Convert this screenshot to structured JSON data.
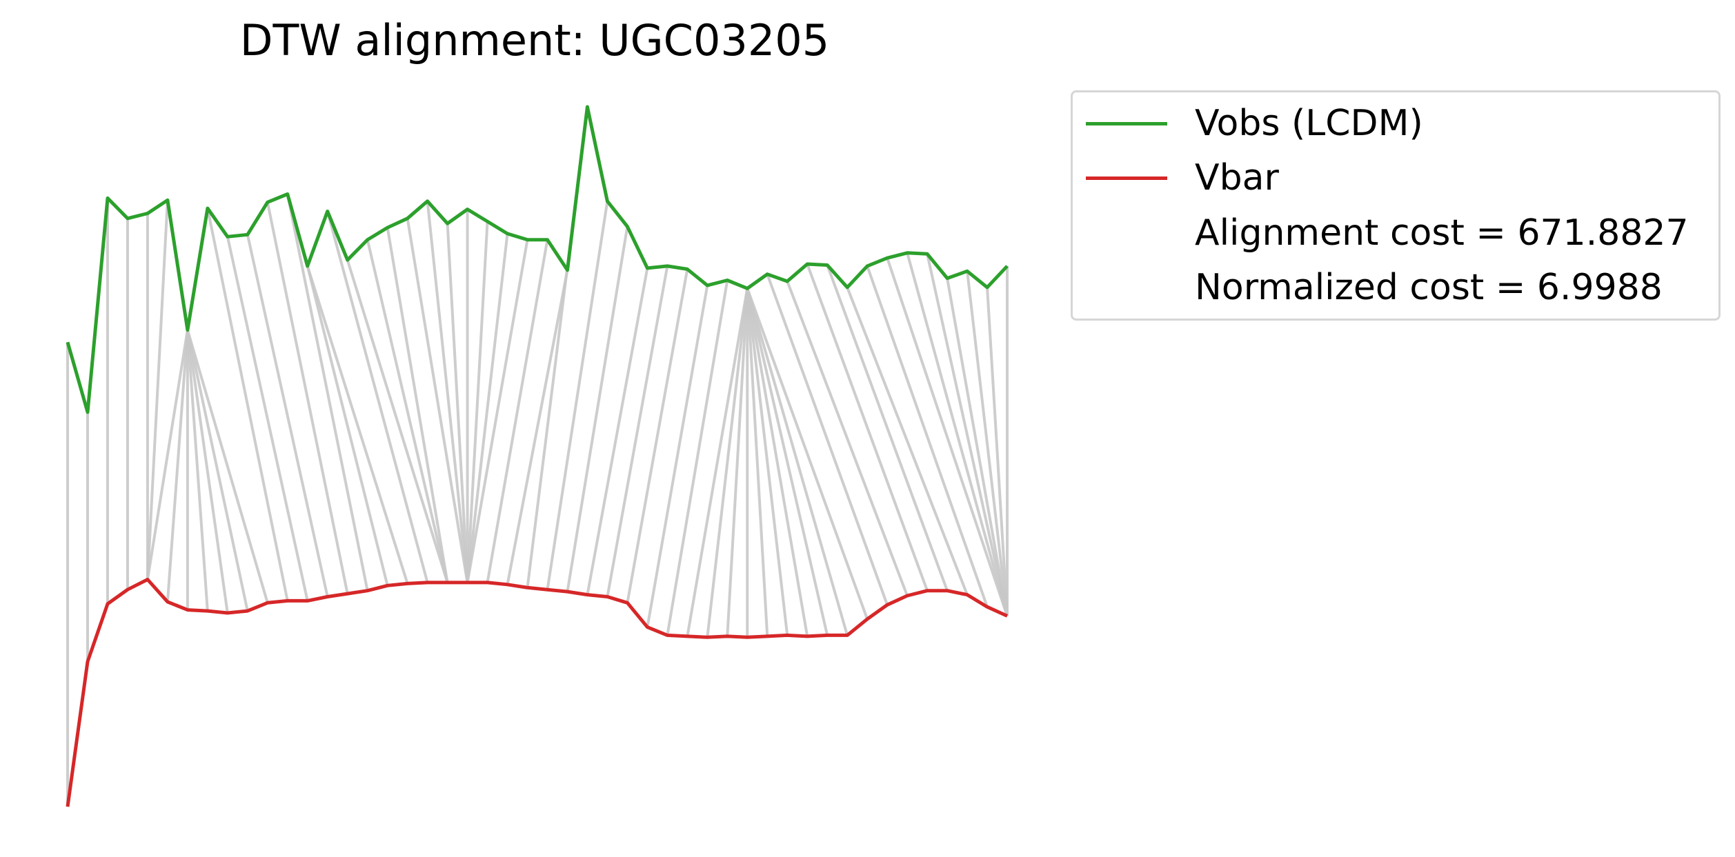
{
  "chart_data": {
    "type": "line",
    "title": "DTW alignment: UGC03205",
    "axes_visible": false,
    "grid": false,
    "legend_placement": "outside right, top",
    "series": [
      {
        "name": "Vobs (LCDM)",
        "color": "#2ca02c",
        "values": [
          29.5,
          22.6,
          43.7,
          41.7,
          42.2,
          43.5,
          30.7,
          42.7,
          39.9,
          40.1,
          43.3,
          44.1,
          37.0,
          42.4,
          37.6,
          39.6,
          40.8,
          41.7,
          43.4,
          41.2,
          42.6,
          41.4,
          40.2,
          39.6,
          39.6,
          36.6,
          52.7,
          43.4,
          40.9,
          36.8,
          37.0,
          36.7,
          35.1,
          35.6,
          34.8,
          36.2,
          35.5,
          37.2,
          37.1,
          34.9,
          37.0,
          37.8,
          38.3,
          38.2,
          35.8,
          36.5,
          34.9,
          37.0
        ]
      },
      {
        "name": "Vbar",
        "color": "#d62728",
        "values": [
          -16.3,
          -2.0,
          3.7,
          5.1,
          6.1,
          3.9,
          3.1,
          3.0,
          2.8,
          3.0,
          3.8,
          4.0,
          4.0,
          4.4,
          4.7,
          5.0,
          5.5,
          5.7,
          5.8,
          5.8,
          5.8,
          5.8,
          5.6,
          5.3,
          5.1,
          4.9,
          4.6,
          4.4,
          3.8,
          1.4,
          0.6,
          0.5,
          0.4,
          0.5,
          0.4,
          0.5,
          0.6,
          0.5,
          0.6,
          0.6,
          2.2,
          3.6,
          4.5,
          5.0,
          5.0,
          4.6,
          3.4,
          2.5
        ]
      }
    ],
    "alignment_path": [
      [
        0,
        0
      ],
      [
        1,
        1
      ],
      [
        2,
        2
      ],
      [
        3,
        3
      ],
      [
        4,
        4
      ],
      [
        5,
        4
      ],
      [
        6,
        4
      ],
      [
        6,
        5
      ],
      [
        6,
        6
      ],
      [
        6,
        7
      ],
      [
        6,
        8
      ],
      [
        6,
        9
      ],
      [
        6,
        10
      ],
      [
        7,
        11
      ],
      [
        8,
        12
      ],
      [
        9,
        13
      ],
      [
        10,
        14
      ],
      [
        11,
        15
      ],
      [
        12,
        16
      ],
      [
        12,
        17
      ],
      [
        13,
        18
      ],
      [
        14,
        19
      ],
      [
        15,
        19
      ],
      [
        16,
        19
      ],
      [
        17,
        20
      ],
      [
        18,
        20
      ],
      [
        19,
        20
      ],
      [
        20,
        20
      ],
      [
        21,
        20
      ],
      [
        22,
        20
      ],
      [
        23,
        20
      ],
      [
        24,
        21
      ],
      [
        25,
        22
      ],
      [
        26,
        23
      ],
      [
        27,
        24
      ],
      [
        28,
        25
      ],
      [
        29,
        26
      ],
      [
        30,
        27
      ],
      [
        31,
        28
      ],
      [
        32,
        29
      ],
      [
        33,
        30
      ],
      [
        34,
        31
      ],
      [
        34,
        32
      ],
      [
        34,
        33
      ],
      [
        34,
        34
      ],
      [
        34,
        35
      ],
      [
        34,
        36
      ],
      [
        34,
        37
      ],
      [
        34,
        38
      ],
      [
        34,
        39
      ],
      [
        34,
        40
      ],
      [
        35,
        41
      ],
      [
        36,
        42
      ],
      [
        37,
        43
      ],
      [
        38,
        44
      ],
      [
        39,
        45
      ],
      [
        40,
        46
      ],
      [
        41,
        47
      ],
      [
        42,
        47
      ],
      [
        43,
        47
      ],
      [
        44,
        47
      ],
      [
        45,
        47
      ],
      [
        46,
        47
      ],
      [
        47,
        47
      ]
    ],
    "connector_color": "#c8c8c8",
    "legend_extra_text": [
      "Alignment cost = 671.8827",
      "Normalized cost = 6.9988"
    ]
  }
}
